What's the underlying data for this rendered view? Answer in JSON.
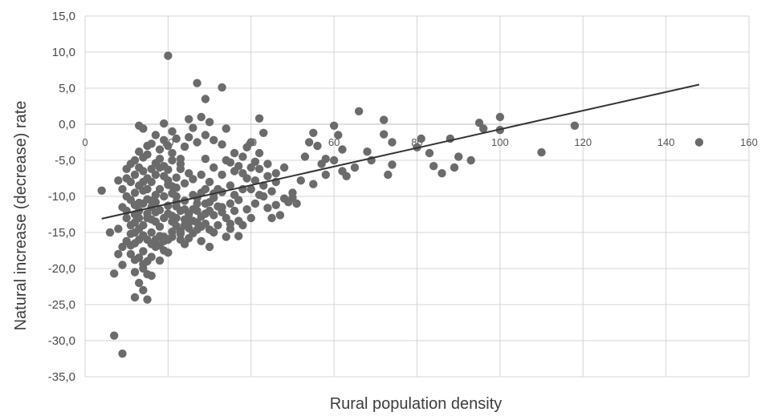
{
  "chart_data": {
    "type": "scatter",
    "title": "",
    "xlabel": "Rural population density",
    "ylabel": "Natural increase (decrease) rate",
    "xlim": [
      0,
      160
    ],
    "ylim": [
      -35,
      15
    ],
    "x_ticks": [
      0,
      20,
      40,
      60,
      80,
      100,
      120,
      140,
      160
    ],
    "x_tick_labels": [
      "0",
      "20",
      "40",
      "60",
      "80",
      "100",
      "120",
      "140",
      "160"
    ],
    "y_ticks": [
      15,
      10,
      5,
      0,
      -5,
      -10,
      -15,
      -20,
      -25,
      -30,
      -35
    ],
    "y_tick_labels": [
      "15,0",
      "10,0",
      "5,0",
      "0,0",
      "-5,0",
      "-10,0",
      "-15,0",
      "-20,0",
      "-25,0",
      "-30,0",
      "-35,0"
    ],
    "x_axis_position": "y = 0",
    "grid": true,
    "colors": {
      "points": "#6b6b6b",
      "trendline": "#333333",
      "grid": "#d4d4d4"
    },
    "trendline": {
      "x": [
        4,
        148
      ],
      "y": [
        -13.1,
        5.5
      ]
    },
    "points": [
      [
        20,
        9.5
      ],
      [
        27,
        5.7
      ],
      [
        33,
        5.1
      ],
      [
        29,
        3.5
      ],
      [
        25,
        0.7
      ],
      [
        28,
        1.0
      ],
      [
        30,
        0.3
      ],
      [
        19,
        0.1
      ],
      [
        26,
        -0.5
      ],
      [
        34,
        -0.6
      ],
      [
        42,
        0.8
      ],
      [
        43,
        -1.2
      ],
      [
        29,
        -1.5
      ],
      [
        31,
        -2.2
      ],
      [
        22,
        -2.0
      ],
      [
        24,
        -3.1
      ],
      [
        13,
        -0.2
      ],
      [
        14,
        -0.6
      ],
      [
        17,
        -1.5
      ],
      [
        16,
        -2.7
      ],
      [
        18,
        -3.5
      ],
      [
        21,
        -4.0
      ],
      [
        23,
        -4.8
      ],
      [
        15,
        -4.2
      ],
      [
        12,
        -5.0
      ],
      [
        11,
        -5.5
      ],
      [
        13,
        -6.0
      ],
      [
        14,
        -6.5
      ],
      [
        12,
        -7.0
      ],
      [
        10,
        -7.5
      ],
      [
        11,
        -8.0
      ],
      [
        13,
        -8.5
      ],
      [
        15,
        -9.0
      ],
      [
        12,
        -9.5
      ],
      [
        10,
        -10.0
      ],
      [
        11,
        -10.5
      ],
      [
        14,
        -11.0
      ],
      [
        16,
        -11.5
      ],
      [
        13,
        -12.0
      ],
      [
        12,
        -12.5
      ],
      [
        15,
        -13.0
      ],
      [
        17,
        -13.5
      ],
      [
        14,
        -14.0
      ],
      [
        13,
        -14.5
      ],
      [
        16,
        -15.0
      ],
      [
        18,
        -15.5
      ],
      [
        15,
        -16.0
      ],
      [
        12,
        -16.5
      ],
      [
        17,
        -17.0
      ],
      [
        19,
        -17.5
      ],
      [
        11,
        -18.0
      ],
      [
        13,
        -18.5
      ],
      [
        15,
        -19.0
      ],
      [
        14,
        -20.0
      ],
      [
        12,
        -20.5
      ],
      [
        16,
        -21.0
      ],
      [
        13,
        -22.0
      ],
      [
        14,
        -23.0
      ],
      [
        12,
        -24.0
      ],
      [
        15,
        -24.3
      ],
      [
        8,
        -18.0
      ],
      [
        9,
        -19.5
      ],
      [
        7,
        -20.7
      ],
      [
        6,
        -15.0
      ],
      [
        8,
        -14.5
      ],
      [
        4,
        -9.2
      ],
      [
        9,
        -11.5
      ],
      [
        10,
        -13.0
      ],
      [
        7,
        -29.3
      ],
      [
        9,
        -31.8
      ],
      [
        18,
        -6.0
      ],
      [
        19,
        -7.2
      ],
      [
        20,
        -8.4
      ],
      [
        21,
        -9.6
      ],
      [
        22,
        -10.8
      ],
      [
        23,
        -12.0
      ],
      [
        24,
        -13.2
      ],
      [
        25,
        -14.4
      ],
      [
        26,
        -15.1
      ],
      [
        20,
        -11.3
      ],
      [
        21,
        -12.7
      ],
      [
        22,
        -14.1
      ],
      [
        19,
        -15.6
      ],
      [
        18,
        -16.8
      ],
      [
        23,
        -16.0
      ],
      [
        25,
        -12.5
      ],
      [
        27,
        -11.0
      ],
      [
        28,
        -9.5
      ],
      [
        30,
        -8.0
      ],
      [
        31,
        -10.2
      ],
      [
        29,
        -12.4
      ],
      [
        27,
        -13.6
      ],
      [
        26,
        -9.8
      ],
      [
        24,
        -8.2
      ],
      [
        22,
        -7.4
      ],
      [
        20,
        -6.3
      ],
      [
        28,
        -7.0
      ],
      [
        32,
        -9.0
      ],
      [
        33,
        -11.5
      ],
      [
        34,
        -13.0
      ],
      [
        35,
        -14.5
      ],
      [
        36,
        -12.0
      ],
      [
        37,
        -10.5
      ],
      [
        38,
        -9.0
      ],
      [
        39,
        -7.5
      ],
      [
        40,
        -6.0
      ],
      [
        41,
        -5.2
      ],
      [
        36,
        -6.5
      ],
      [
        38,
        -4.5
      ],
      [
        39,
        -3.2
      ],
      [
        40,
        -2.5
      ],
      [
        35,
        -8.5
      ],
      [
        37,
        -15.5
      ],
      [
        38,
        -14.0
      ],
      [
        40,
        -13.0
      ],
      [
        41,
        -11.0
      ],
      [
        42,
        -9.8
      ],
      [
        43,
        -8.5
      ],
      [
        44,
        -7.2
      ],
      [
        42,
        -4.0
      ],
      [
        30,
        -17.0
      ],
      [
        28,
        -16.2
      ],
      [
        45,
        -9.3
      ],
      [
        46,
        -11.2
      ],
      [
        47,
        -12.6
      ],
      [
        48,
        -10.3
      ],
      [
        49,
        -10.8
      ],
      [
        50,
        -9.5
      ],
      [
        51,
        -11.0
      ],
      [
        45,
        -13.0
      ],
      [
        52,
        -7.8
      ],
      [
        53,
        -4.5
      ],
      [
        54,
        -2.5
      ],
      [
        55,
        -1.2
      ],
      [
        56,
        -3.0
      ],
      [
        57,
        -5.5
      ],
      [
        58,
        -7.0
      ],
      [
        60,
        -5.0
      ],
      [
        61,
        -1.5
      ],
      [
        62,
        -6.5
      ],
      [
        60,
        -0.2
      ],
      [
        62,
        -3.5
      ],
      [
        63,
        -7.2
      ],
      [
        65,
        -6.0
      ],
      [
        66,
        1.8
      ],
      [
        68,
        -3.8
      ],
      [
        69,
        -5.0
      ],
      [
        72,
        0.6
      ],
      [
        72,
        -1.4
      ],
      [
        74,
        -2.5
      ],
      [
        74,
        -5.6
      ],
      [
        73,
        -7.0
      ],
      [
        80,
        -3.2
      ],
      [
        81,
        -2.0
      ],
      [
        83,
        -4.0
      ],
      [
        84,
        -5.8
      ],
      [
        86,
        -6.8
      ],
      [
        88,
        -2.0
      ],
      [
        89,
        -6.0
      ],
      [
        90,
        -4.5
      ],
      [
        93,
        -5.0
      ],
      [
        95,
        0.2
      ],
      [
        96,
        -0.6
      ],
      [
        100,
        1.0
      ],
      [
        100,
        -0.8
      ],
      [
        110,
        -3.9
      ],
      [
        118,
        -0.2
      ],
      [
        148,
        -2.5
      ],
      [
        33,
        -2.8
      ],
      [
        36,
        -4.0
      ],
      [
        34,
        -5.0
      ],
      [
        44,
        -5.5
      ],
      [
        46,
        -8.0
      ],
      [
        48,
        -6.0
      ],
      [
        15,
        -3.0
      ],
      [
        17,
        -5.4
      ],
      [
        16,
        -8.0
      ],
      [
        18,
        -9.0
      ],
      [
        19,
        -10.0
      ],
      [
        17,
        -12.2
      ],
      [
        16,
        -13.2
      ],
      [
        14,
        -9.2
      ],
      [
        22,
        -10.0
      ],
      [
        21,
        -13.5
      ],
      [
        23,
        -14.8
      ],
      [
        25,
        -15.8
      ],
      [
        24,
        -16.6
      ],
      [
        20,
        -17.8
      ],
      [
        12,
        -11.2
      ],
      [
        10,
        -12.0
      ],
      [
        11,
        -14.0
      ],
      [
        9,
        -9.0
      ],
      [
        8,
        -7.8
      ],
      [
        10,
        -6.2
      ],
      [
        13,
        -3.8
      ],
      [
        14,
        -4.6
      ],
      [
        23,
        -5.5
      ],
      [
        25,
        -6.8
      ],
      [
        26,
        -11.8
      ],
      [
        27,
        -14.6
      ],
      [
        29,
        -13.8
      ],
      [
        31,
        -12.6
      ],
      [
        32,
        -14.0
      ],
      [
        34,
        -15.6
      ],
      [
        31,
        -15.0
      ],
      [
        29,
        -9.0
      ],
      [
        30,
        -10.8
      ],
      [
        26,
        -7.6
      ],
      [
        24,
        -10.6
      ],
      [
        17,
        -9.8
      ],
      [
        15,
        -10.4
      ],
      [
        13,
        -10.9
      ],
      [
        12,
        -13.6
      ],
      [
        11,
        -15.2
      ],
      [
        10,
        -16.2
      ],
      [
        9,
        -17.0
      ],
      [
        14,
        -17.6
      ],
      [
        16,
        -18.4
      ],
      [
        18,
        -18.9
      ],
      [
        20,
        -16.0
      ],
      [
        21,
        -14.9
      ],
      [
        19,
        -13.0
      ],
      [
        18,
        -11.9
      ],
      [
        16,
        -10.6
      ],
      [
        20,
        -3.0
      ],
      [
        21,
        -5.0
      ],
      [
        23,
        -6.2
      ],
      [
        22,
        -8.8
      ],
      [
        24,
        -11.8
      ],
      [
        27,
        -12.0
      ],
      [
        28,
        -14.2
      ],
      [
        30,
        -12.0
      ],
      [
        32,
        -11.4
      ],
      [
        33,
        -9.4
      ],
      [
        35,
        -11.0
      ],
      [
        36,
        -9.8
      ],
      [
        37,
        -13.4
      ],
      [
        39,
        -11.8
      ],
      [
        40,
        -9.0
      ],
      [
        41,
        -7.8
      ],
      [
        42,
        -6.2
      ],
      [
        43,
        -10.0
      ],
      [
        44,
        -11.6
      ],
      [
        38,
        -6.8
      ],
      [
        37,
        -5.8
      ],
      [
        35,
        -5.3
      ],
      [
        33,
        -7.0
      ],
      [
        31,
        -6.0
      ],
      [
        29,
        -4.8
      ],
      [
        27,
        -2.5
      ],
      [
        25,
        -1.8
      ],
      [
        21,
        -1.0
      ],
      [
        19,
        -2.2
      ],
      [
        18,
        -4.8
      ],
      [
        17,
        -7.0
      ],
      [
        16,
        -6.2
      ],
      [
        15,
        -7.5
      ],
      [
        14,
        -8.0
      ],
      [
        13,
        -13.0
      ],
      [
        12,
        -15.0
      ],
      [
        14,
        -15.4
      ],
      [
        16,
        -16.6
      ],
      [
        18,
        -14.2
      ],
      [
        20,
        -12.4
      ],
      [
        22,
        -13.0
      ],
      [
        24,
        -14.0
      ],
      [
        26,
        -13.4
      ],
      [
        28,
        -12.8
      ],
      [
        30,
        -14.6
      ],
      [
        19,
        -5.8
      ],
      [
        20,
        -7.8
      ],
      [
        21,
        -8.6
      ],
      [
        22,
        -11.4
      ],
      [
        17,
        -10.8
      ],
      [
        15,
        -12.4
      ],
      [
        13,
        -16.0
      ],
      [
        11,
        -16.8
      ],
      [
        12,
        -18.8
      ],
      [
        14,
        -19.4
      ],
      [
        15,
        -20.8
      ],
      [
        17,
        -16.0
      ],
      [
        19,
        -16.2
      ],
      [
        21,
        -15.6
      ],
      [
        23,
        -15.2
      ],
      [
        25,
        -13.6
      ],
      [
        27,
        -10.2
      ],
      [
        29,
        -11.0
      ],
      [
        31,
        -9.6
      ],
      [
        33,
        -12.2
      ],
      [
        35,
        -13.8
      ],
      [
        46,
        -6.8
      ],
      [
        50,
        -10.2
      ],
      [
        55,
        -8.3
      ],
      [
        58,
        -4.8
      ]
    ]
  }
}
